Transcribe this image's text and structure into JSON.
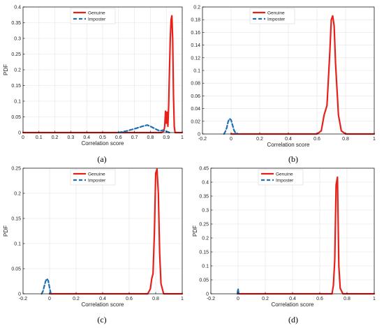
{
  "colors": {
    "genuine": "#e8201a",
    "imposter": "#1f6fb5",
    "grid": "#e3e3e3",
    "axis": "#000000"
  },
  "chart_data": [
    {
      "type": "line",
      "caption": "(a)",
      "xlabel": "Correlation score",
      "ylabel": "PDF",
      "xlim": [
        0,
        1
      ],
      "ylim": [
        0,
        0.4
      ],
      "xticks": [
        0,
        0.1,
        0.2,
        0.3,
        0.4,
        0.5,
        0.6,
        0.7,
        0.8,
        0.9,
        1
      ],
      "xtick_labels": [
        "0",
        "0.1",
        "0.2",
        "0.3",
        "0.4",
        "0.5",
        "0.6",
        "0.7",
        "0.8",
        "0.9",
        "1"
      ],
      "yticks": [
        0,
        0.05,
        0.1,
        0.15,
        0.2,
        0.25,
        0.3,
        0.35,
        0.4
      ],
      "ytick_labels": [
        "0",
        "0.05",
        "0.1",
        "0.15",
        "0.2",
        "0.25",
        "0.3",
        "0.35",
        "0.4"
      ],
      "grid": true,
      "legend": "top-left",
      "series": [
        {
          "name": "Genuine",
          "style": "solid",
          "x": [
            0,
            0.87,
            0.885,
            0.89,
            0.895,
            0.9,
            0.905,
            0.91,
            0.915,
            0.92,
            0.925,
            0.93,
            0.935,
            0.94,
            0.945,
            0.95,
            0.955,
            1
          ],
          "y": [
            0,
            0,
            0.005,
            0.02,
            0.068,
            0.03,
            0.065,
            0.02,
            0.09,
            0.2,
            0.3,
            0.36,
            0.372,
            0.3,
            0.12,
            0.02,
            0,
            0
          ]
        },
        {
          "name": "Imposter",
          "style": "dashed",
          "x": [
            0.6,
            0.65,
            0.7,
            0.75,
            0.78,
            0.8,
            0.83,
            0.86,
            0.88,
            0.9,
            0.92
          ],
          "y": [
            0,
            0.005,
            0.012,
            0.02,
            0.024,
            0.02,
            0.012,
            0.005,
            0.008,
            0.004,
            0
          ]
        }
      ]
    },
    {
      "type": "line",
      "caption": "(b)",
      "xlabel": "Correlation score",
      "ylabel": "",
      "xlim": [
        -0.2,
        1
      ],
      "ylim": [
        0,
        0.2
      ],
      "xticks": [
        -0.2,
        0,
        0.2,
        0.4,
        0.6,
        0.8,
        1
      ],
      "xtick_labels": [
        "-0.2",
        "0",
        "0.2",
        "0.4",
        "0.6",
        "0.8",
        "1"
      ],
      "yticks": [
        0,
        0.02,
        0.04,
        0.06,
        0.08,
        0.1,
        0.12,
        0.14,
        0.16,
        0.18,
        0.2
      ],
      "ytick_labels": [
        "0",
        "0.02",
        "0.04",
        "0.06",
        "0.08",
        "0.1",
        "0.12",
        "0.14",
        "0.16",
        "0.18",
        "0.2"
      ],
      "grid": true,
      "legend": "top-left",
      "series": [
        {
          "name": "Genuine",
          "style": "solid",
          "x": [
            0,
            0.6,
            0.63,
            0.65,
            0.67,
            0.69,
            0.7,
            0.71,
            0.72,
            0.73,
            0.75,
            0.77,
            0.8,
            1
          ],
          "y": [
            0,
            0,
            0.005,
            0.03,
            0.045,
            0.13,
            0.18,
            0.186,
            0.17,
            0.11,
            0.03,
            0.005,
            0,
            0
          ]
        },
        {
          "name": "Imposter",
          "style": "dashed",
          "x": [
            -0.05,
            -0.04,
            -0.03,
            -0.02,
            -0.01,
            0,
            0.01,
            0.02,
            0.03,
            0.05
          ],
          "y": [
            0,
            0.004,
            0.01,
            0.02,
            0.024,
            0.022,
            0.014,
            0.006,
            0.002,
            0
          ]
        }
      ]
    },
    {
      "type": "line",
      "caption": "(c)",
      "xlabel": "Correlation score",
      "ylabel": "PDF",
      "xlim": [
        -0.2,
        1
      ],
      "ylim": [
        0,
        0.25
      ],
      "xticks": [
        -0.2,
        0,
        0.2,
        0.4,
        0.6,
        0.8,
        1
      ],
      "xtick_labels": [
        "-0.2",
        "0",
        "0.2",
        "0.4",
        "0.6",
        "0.8",
        "1"
      ],
      "yticks": [
        0,
        0.05,
        0.1,
        0.15,
        0.2,
        0.25
      ],
      "ytick_labels": [
        "0",
        "0.05",
        "0.1",
        "0.15",
        "0.2",
        "0.25"
      ],
      "grid": true,
      "legend": "top-left",
      "series": [
        {
          "name": "Genuine",
          "style": "solid",
          "x": [
            0,
            0.74,
            0.76,
            0.77,
            0.78,
            0.79,
            0.8,
            0.81,
            0.82,
            0.83,
            0.84,
            0.86,
            1
          ],
          "y": [
            0,
            0,
            0.01,
            0.03,
            0.04,
            0.12,
            0.24,
            0.248,
            0.2,
            0.08,
            0.02,
            0,
            0
          ]
        },
        {
          "name": "Imposter",
          "style": "dashed",
          "x": [
            -0.06,
            -0.05,
            -0.04,
            -0.03,
            -0.02,
            -0.01,
            0,
            0.01
          ],
          "y": [
            0,
            0.005,
            0.015,
            0.025,
            0.03,
            0.026,
            0.012,
            0
          ]
        }
      ]
    },
    {
      "type": "line",
      "caption": "(d)",
      "xlabel": "Correlation score",
      "ylabel": "PDF",
      "xlim": [
        -0.2,
        1
      ],
      "ylim": [
        0,
        0.45
      ],
      "xticks": [
        -0.2,
        0,
        0.2,
        0.4,
        0.6,
        0.8,
        1
      ],
      "xtick_labels": [
        "-0.2",
        "0",
        "0.2",
        "0.4",
        "0.6",
        "0.8",
        "1"
      ],
      "yticks": [
        0,
        0.05,
        0.1,
        0.15,
        0.2,
        0.25,
        0.3,
        0.35,
        0.4,
        0.45
      ],
      "ytick_labels": [
        "0",
        "0.05",
        "0.1",
        "0.15",
        "0.2",
        "0.25",
        "0.3",
        "0.35",
        "0.4",
        "0.45"
      ],
      "grid": true,
      "legend": "top-left",
      "series": [
        {
          "name": "Genuine",
          "style": "solid",
          "x": [
            0,
            0.69,
            0.7,
            0.71,
            0.72,
            0.73,
            0.74,
            0.75,
            0.77,
            1
          ],
          "y": [
            0,
            0,
            0.03,
            0.12,
            0.39,
            0.418,
            0.1,
            0.02,
            0,
            0
          ]
        },
        {
          "name": "Imposter",
          "style": "dashed",
          "x": [
            -0.005,
            -0.002,
            0,
            0.002,
            0.005
          ],
          "y": [
            0,
            0.012,
            0.018,
            0.01,
            0
          ]
        }
      ]
    }
  ]
}
